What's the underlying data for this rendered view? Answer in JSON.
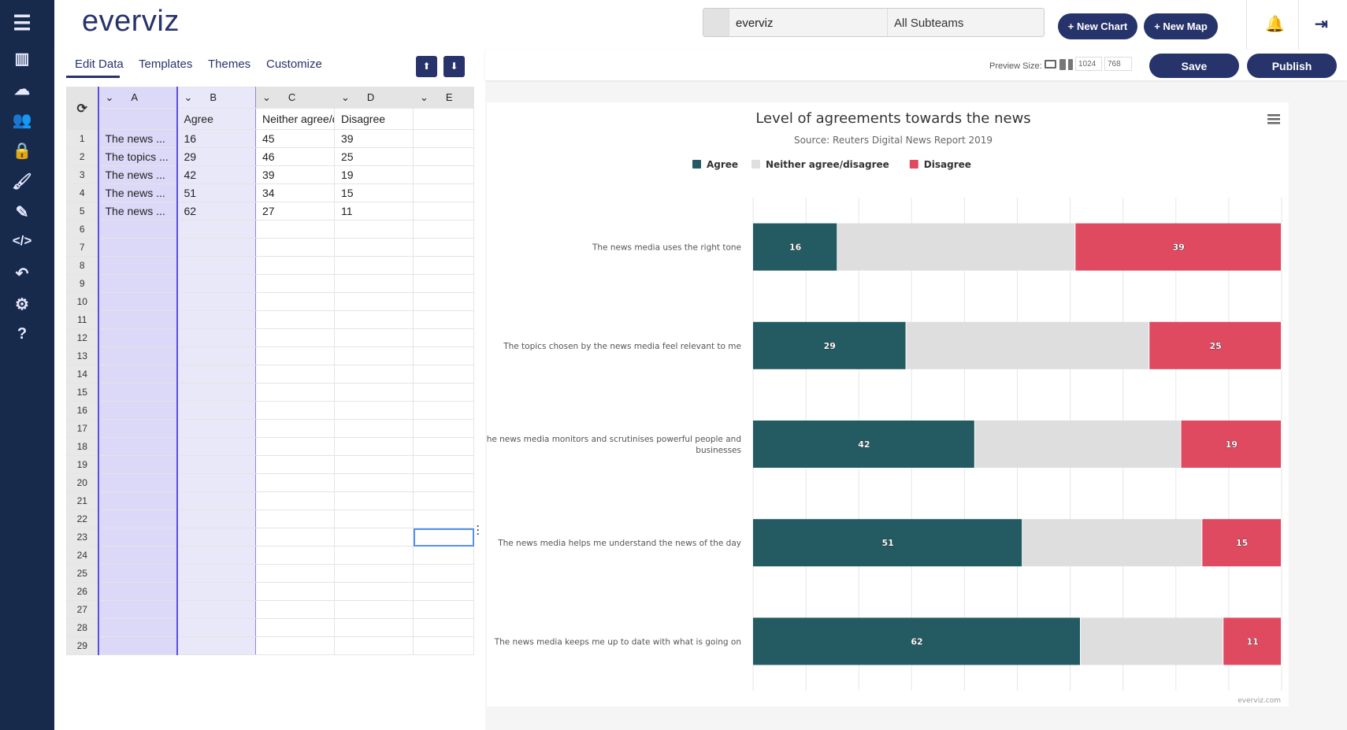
{
  "sidebar": {
    "icons": [
      "menu-icon",
      "bar-chart-icon",
      "cloud-icon",
      "users-icon",
      "lock-icon",
      "brush-icon",
      "edit-icon",
      "code-icon",
      "undo-icon",
      "gear-icon",
      "help-icon"
    ]
  },
  "header": {
    "logo": "everviz",
    "team": "everviz",
    "subteam": "All Subteams",
    "new_chart": "+ New Chart",
    "new_map": "+ New Map"
  },
  "tabs": [
    "Edit Data",
    "Templates",
    "Themes",
    "Customize"
  ],
  "toolbar": {
    "preview_label": "Preview Size:",
    "width": "1024",
    "height": "768",
    "save": "Save",
    "publish": "Publish"
  },
  "grid": {
    "columns": [
      "A",
      "B",
      "C",
      "D",
      "E"
    ],
    "headers": [
      "",
      "Agree",
      "Neither agree/d",
      "Disagree",
      ""
    ],
    "rows": [
      [
        "The news ...",
        "16",
        "45",
        "39",
        ""
      ],
      [
        "The topics ...",
        "29",
        "46",
        "25",
        ""
      ],
      [
        "The news ...",
        "42",
        "39",
        "19",
        ""
      ],
      [
        "The news ...",
        "51",
        "34",
        "15",
        ""
      ],
      [
        "The news ...",
        "62",
        "27",
        "11",
        ""
      ]
    ],
    "row_count": 29
  },
  "chart_data": {
    "type": "bar",
    "orientation": "horizontal",
    "stacking": "percent",
    "title": "Level of agreements towards the news",
    "subtitle": "Source: Reuters Digital News Report 2019",
    "credit": "everviz.com",
    "legend_position": "top-left",
    "categories": [
      "The news media uses the right tone",
      "The topics chosen by the news media feel relevant to me",
      "The news media monitors and scrutinises powerful people and businesses",
      "The news media helps me understand the news of the day",
      "The news media keeps me up to date with what is going on"
    ],
    "series": [
      {
        "name": "Agree",
        "color": "#245b63",
        "values": [
          16,
          29,
          42,
          51,
          62
        ],
        "labels": true
      },
      {
        "name": "Neither agree/disagree",
        "color": "#dedede",
        "values": [
          45,
          46,
          39,
          34,
          27
        ],
        "labels": false
      },
      {
        "name": "Disagree",
        "color": "#e04a61",
        "values": [
          39,
          25,
          19,
          15,
          11
        ],
        "labels": true
      }
    ],
    "xlim": [
      0,
      100
    ],
    "grid": true
  }
}
